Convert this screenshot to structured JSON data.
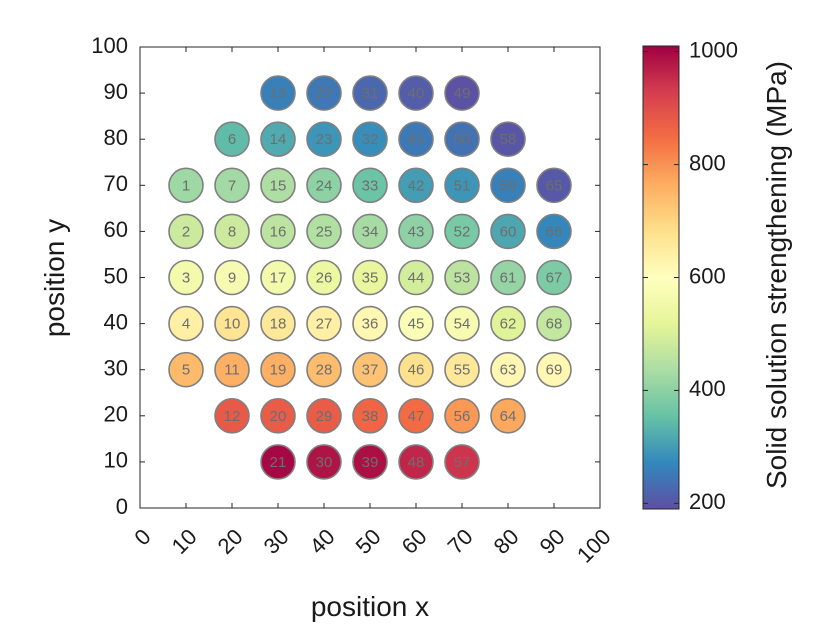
{
  "chart_data": {
    "type": "scatter",
    "xlabel": "position x",
    "ylabel": "position y",
    "colorbar_label": "Solid solution strengthening (MPa)",
    "xlim": [
      0,
      100
    ],
    "ylim": [
      0,
      100
    ],
    "xticks": [
      "0",
      "10",
      "20",
      "30",
      "40",
      "50",
      "60",
      "70",
      "80",
      "90",
      "100"
    ],
    "yticks": [
      "0",
      "10",
      "20",
      "30",
      "40",
      "50",
      "60",
      "70",
      "80",
      "90",
      "100"
    ],
    "colorbar_range": [
      190,
      1010
    ],
    "colorbar_ticks": [
      "200",
      "400",
      "600",
      "800",
      "1000"
    ],
    "colormap": "Spectral",
    "grid": false,
    "points": [
      {
        "label": "1",
        "x": 10,
        "y": 70,
        "value": 420
      },
      {
        "label": "2",
        "x": 10,
        "y": 60,
        "value": 480
      },
      {
        "label": "3",
        "x": 10,
        "y": 50,
        "value": 560
      },
      {
        "label": "4",
        "x": 10,
        "y": 40,
        "value": 640
      },
      {
        "label": "5",
        "x": 10,
        "y": 30,
        "value": 745
      },
      {
        "label": "6",
        "x": 20,
        "y": 80,
        "value": 345
      },
      {
        "label": "7",
        "x": 20,
        "y": 70,
        "value": 425
      },
      {
        "label": "8",
        "x": 20,
        "y": 60,
        "value": 480
      },
      {
        "label": "9",
        "x": 20,
        "y": 50,
        "value": 570
      },
      {
        "label": "10",
        "x": 20,
        "y": 40,
        "value": 670
      },
      {
        "label": "11",
        "x": 20,
        "y": 30,
        "value": 760
      },
      {
        "label": "12",
        "x": 20,
        "y": 20,
        "value": 880
      },
      {
        "label": "13",
        "x": 30,
        "y": 90,
        "value": 260
      },
      {
        "label": "14",
        "x": 30,
        "y": 80,
        "value": 320
      },
      {
        "label": "15",
        "x": 30,
        "y": 70,
        "value": 440
      },
      {
        "label": "16",
        "x": 30,
        "y": 60,
        "value": 460
      },
      {
        "label": "17",
        "x": 30,
        "y": 50,
        "value": 560
      },
      {
        "label": "18",
        "x": 30,
        "y": 40,
        "value": 660
      },
      {
        "label": "19",
        "x": 30,
        "y": 30,
        "value": 760
      },
      {
        "label": "20",
        "x": 30,
        "y": 20,
        "value": 875
      },
      {
        "label": "21",
        "x": 30,
        "y": 10,
        "value": 1000
      },
      {
        "label": "22",
        "x": 40,
        "y": 90,
        "value": 250
      },
      {
        "label": "23",
        "x": 40,
        "y": 80,
        "value": 290
      },
      {
        "label": "24",
        "x": 40,
        "y": 70,
        "value": 400
      },
      {
        "label": "25",
        "x": 40,
        "y": 60,
        "value": 445
      },
      {
        "label": "26",
        "x": 40,
        "y": 50,
        "value": 540
      },
      {
        "label": "27",
        "x": 40,
        "y": 40,
        "value": 640
      },
      {
        "label": "28",
        "x": 40,
        "y": 30,
        "value": 740
      },
      {
        "label": "29",
        "x": 40,
        "y": 20,
        "value": 875
      },
      {
        "label": "30",
        "x": 40,
        "y": 10,
        "value": 985
      },
      {
        "label": "31",
        "x": 50,
        "y": 90,
        "value": 225
      },
      {
        "label": "32",
        "x": 50,
        "y": 80,
        "value": 280
      },
      {
        "label": "33",
        "x": 50,
        "y": 70,
        "value": 360
      },
      {
        "label": "34",
        "x": 50,
        "y": 60,
        "value": 430
      },
      {
        "label": "35",
        "x": 50,
        "y": 50,
        "value": 530
      },
      {
        "label": "36",
        "x": 50,
        "y": 40,
        "value": 620
      },
      {
        "label": "37",
        "x": 50,
        "y": 30,
        "value": 730
      },
      {
        "label": "38",
        "x": 50,
        "y": 20,
        "value": 860
      },
      {
        "label": "39",
        "x": 50,
        "y": 10,
        "value": 990
      },
      {
        "label": "40",
        "x": 60,
        "y": 90,
        "value": 210
      },
      {
        "label": "41",
        "x": 60,
        "y": 80,
        "value": 250
      },
      {
        "label": "42",
        "x": 60,
        "y": 70,
        "value": 300
      },
      {
        "label": "43",
        "x": 60,
        "y": 60,
        "value": 400
      },
      {
        "label": "44",
        "x": 60,
        "y": 50,
        "value": 490
      },
      {
        "label": "45",
        "x": 60,
        "y": 40,
        "value": 580
      },
      {
        "label": "46",
        "x": 60,
        "y": 30,
        "value": 680
      },
      {
        "label": "47",
        "x": 60,
        "y": 20,
        "value": 850
      },
      {
        "label": "48",
        "x": 60,
        "y": 10,
        "value": 960
      },
      {
        "label": "49",
        "x": 70,
        "y": 90,
        "value": 195
      },
      {
        "label": "50",
        "x": 70,
        "y": 80,
        "value": 240
      },
      {
        "label": "51",
        "x": 70,
        "y": 70,
        "value": 290
      },
      {
        "label": "52",
        "x": 70,
        "y": 60,
        "value": 375
      },
      {
        "label": "53",
        "x": 70,
        "y": 50,
        "value": 460
      },
      {
        "label": "54",
        "x": 70,
        "y": 40,
        "value": 570
      },
      {
        "label": "55",
        "x": 70,
        "y": 30,
        "value": 660
      },
      {
        "label": "56",
        "x": 70,
        "y": 20,
        "value": 790
      },
      {
        "label": "57",
        "x": 70,
        "y": 10,
        "value": 940
      },
      {
        "label": "58",
        "x": 80,
        "y": 80,
        "value": 200
      },
      {
        "label": "59",
        "x": 80,
        "y": 70,
        "value": 260
      },
      {
        "label": "60",
        "x": 80,
        "y": 60,
        "value": 315
      },
      {
        "label": "61",
        "x": 80,
        "y": 50,
        "value": 410
      },
      {
        "label": "62",
        "x": 80,
        "y": 40,
        "value": 510
      },
      {
        "label": "63",
        "x": 80,
        "y": 30,
        "value": 620
      },
      {
        "label": "64",
        "x": 80,
        "y": 20,
        "value": 770
      },
      {
        "label": "65",
        "x": 90,
        "y": 70,
        "value": 205
      },
      {
        "label": "66",
        "x": 90,
        "y": 60,
        "value": 270
      },
      {
        "label": "67",
        "x": 90,
        "y": 50,
        "value": 380
      },
      {
        "label": "68",
        "x": 90,
        "y": 40,
        "value": 470
      },
      {
        "label": "69",
        "x": 90,
        "y": 30,
        "value": 620
      }
    ]
  }
}
